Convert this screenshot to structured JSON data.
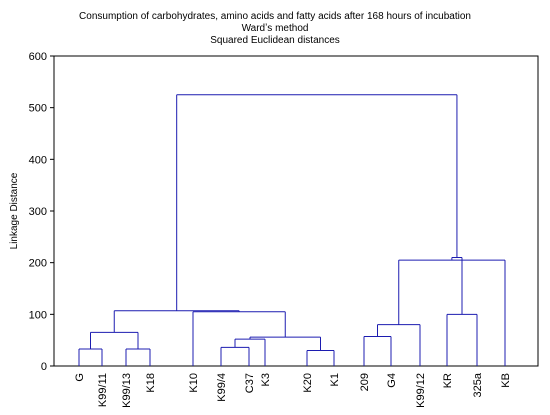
{
  "chart_data": {
    "type": "dendrogram",
    "title": "Consumption of carbohydrates, amino acids and fatty acids after 168 hours of incubation",
    "subtitle": [
      "Wardʼs method",
      "Squared Euclidean distances"
    ],
    "ylabel": "Linkage Distance",
    "xlabel": "",
    "ylim": [
      0,
      600
    ],
    "yticks": [
      0,
      100,
      200,
      300,
      400,
      500,
      600
    ],
    "grid": false,
    "line_color": "#1c1cb0",
    "leaves": [
      "G",
      "K99/11",
      "K99/13",
      "K18",
      "K10",
      "K99/4",
      "C37",
      "K3",
      "K20",
      "K1",
      "209",
      "G4",
      "K99/12",
      "KR",
      "325a",
      "KB"
    ],
    "merges": [
      {
        "left": "K99/4",
        "right": "C37",
        "height": 36
      },
      {
        "left": "K20",
        "right": "K1",
        "height": 30
      },
      {
        "left": "G",
        "right": "K99/11",
        "height": 33
      },
      {
        "left": "K99/13",
        "right": "K18",
        "height": 33
      },
      {
        "left": "209",
        "right": "G4",
        "height": 57
      },
      {
        "left": "[K99/4,C37]",
        "right": "K3",
        "height": 52
      },
      {
        "left": "[209,G4]",
        "right": "K99/12",
        "height": 80
      },
      {
        "left": "KR",
        "right": "325a",
        "height": 100
      },
      {
        "left": "[[K99/4,C37],K3]",
        "right": "[K20,K1]",
        "height": 56
      },
      {
        "left": "[G,K99/11]",
        "right": "[K99/13,K18]",
        "height": 65
      },
      {
        "left": "K10",
        "right": "[[[K99/4,C37],K3],[K20,K1]]",
        "height": 105
      },
      {
        "left": "[[209,G4],K99/12]",
        "right": "KB",
        "height": 205
      },
      {
        "left": "[[G,K99/11],[K99/13,K18]]",
        "right": "[K10,...]",
        "height": 107
      },
      {
        "left": "[KR,325a]",
        "right": "[[[209,G4],K99/12],KB]",
        "height": 210
      },
      {
        "left": "left-cluster",
        "right": "right-cluster",
        "height": 525
      }
    ]
  }
}
